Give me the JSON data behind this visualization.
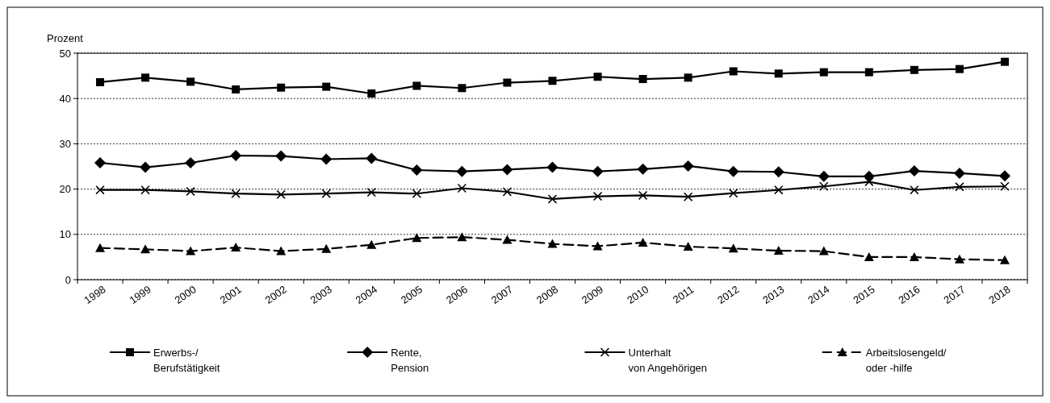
{
  "chart_data": {
    "type": "line",
    "ylabel": "Prozent",
    "categories": [
      "1998",
      "1999",
      "2000",
      "2001",
      "2002",
      "2003",
      "2004",
      "2005",
      "2006",
      "2007",
      "2008",
      "2009",
      "2010",
      "2011",
      "2012",
      "2013",
      "2014",
      "2015",
      "2016",
      "2017",
      "2018"
    ],
    "ylim": [
      0,
      50
    ],
    "yticks": [
      0,
      10,
      20,
      30,
      40,
      50
    ],
    "grid": "y",
    "legend": "bottom",
    "series": [
      {
        "name": "Erwerbs-/\nBerufstätigkeit",
        "color": "#000000",
        "marker": "square",
        "line_style": "solid",
        "values": [
          43.6,
          44.6,
          43.7,
          42.0,
          42.4,
          42.6,
          41.1,
          42.8,
          42.3,
          43.5,
          43.9,
          44.8,
          44.3,
          44.6,
          46.0,
          45.5,
          45.8,
          45.8,
          46.3,
          46.5,
          48.1
        ]
      },
      {
        "name": "Rente,\nPension",
        "color": "#000000",
        "marker": "diamond",
        "line_style": "solid",
        "values": [
          25.8,
          24.8,
          25.8,
          27.4,
          27.3,
          26.6,
          26.8,
          24.2,
          23.9,
          24.3,
          24.8,
          23.9,
          24.4,
          25.1,
          23.9,
          23.8,
          22.8,
          22.8,
          24.0,
          23.5,
          22.9
        ]
      },
      {
        "name": "Unterhalt\nvon Angehörigen",
        "color": "#000000",
        "marker": "cross",
        "line_style": "solid",
        "values": [
          19.8,
          19.8,
          19.5,
          19.0,
          18.8,
          19.0,
          19.3,
          19.0,
          20.2,
          19.4,
          17.8,
          18.4,
          18.6,
          18.3,
          19.1,
          19.8,
          20.6,
          21.6,
          19.8,
          20.5,
          20.6
        ]
      },
      {
        "name": "Arbeitslosengeld/\noder -hilfe",
        "color": "#000000",
        "marker": "triangle",
        "line_style": "dashed",
        "values": [
          7.0,
          6.7,
          6.3,
          7.1,
          6.3,
          6.8,
          7.7,
          9.2,
          9.4,
          8.8,
          7.9,
          7.4,
          8.2,
          7.3,
          6.9,
          6.4,
          6.3,
          5.0,
          5.0,
          4.5,
          4.3
        ]
      }
    ]
  }
}
